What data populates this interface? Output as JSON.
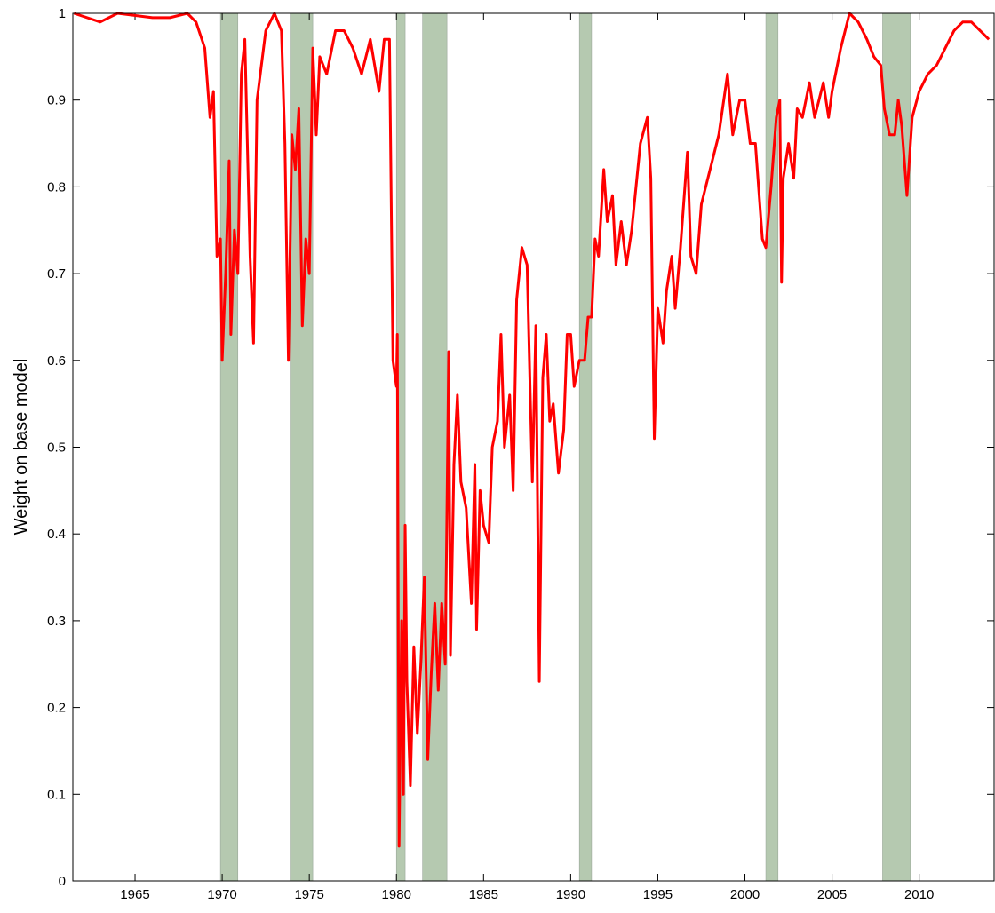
{
  "chart_data": {
    "type": "line",
    "y_label": "Weight on base model",
    "xlim": [
      1961.43,
      2014.3
    ],
    "ylim": [
      0,
      1
    ],
    "xticks": [
      1965,
      1970,
      1975,
      1980,
      1985,
      1990,
      1995,
      2000,
      2005,
      2010
    ],
    "yticks": [
      0,
      0.1,
      0.2,
      0.3,
      0.4,
      0.5,
      0.6,
      0.7,
      0.8,
      0.9,
      1
    ],
    "color": "#ff0000",
    "shade_color": "#b5c9b0",
    "shaded_regions": [
      {
        "start": 1969.9,
        "end": 1970.9
      },
      {
        "start": 1973.9,
        "end": 1975.2
      },
      {
        "start": 1980.0,
        "end": 1980.5
      },
      {
        "start": 1981.5,
        "end": 1982.9
      },
      {
        "start": 1990.5,
        "end": 1991.2
      },
      {
        "start": 2001.2,
        "end": 2001.9
      },
      {
        "start": 2007.9,
        "end": 2009.5
      }
    ],
    "x": [
      1961.5,
      1963,
      1964,
      1966,
      1967,
      1968,
      1968.5,
      1969,
      1969.3,
      1969.5,
      1969.7,
      1969.9,
      1970.0,
      1970.2,
      1970.4,
      1970.5,
      1970.7,
      1970.9,
      1971.1,
      1971.3,
      1971.6,
      1971.8,
      1972.0,
      1972.5,
      1973.0,
      1973.4,
      1973.6,
      1973.8,
      1974.0,
      1974.2,
      1974.4,
      1974.6,
      1974.8,
      1975.0,
      1975.2,
      1975.4,
      1975.6,
      1976.0,
      1976.5,
      1977,
      1977.5,
      1978,
      1978.5,
      1979,
      1979.3,
      1979.6,
      1979.8,
      1980.0,
      1980.05,
      1980.15,
      1980.3,
      1980.4,
      1980.5,
      1980.6,
      1980.8,
      1981.0,
      1981.2,
      1981.4,
      1981.6,
      1981.8,
      1982.0,
      1982.2,
      1982.4,
      1982.6,
      1982.8,
      1983.0,
      1983.1,
      1983.3,
      1983.5,
      1983.7,
      1984.0,
      1984.3,
      1984.5,
      1984.6,
      1984.8,
      1985.0,
      1985.3,
      1985.5,
      1985.8,
      1986.0,
      1986.2,
      1986.5,
      1986.7,
      1986.9,
      1987.2,
      1987.5,
      1987.8,
      1988.0,
      1988.2,
      1988.4,
      1988.6,
      1988.8,
      1989.0,
      1989.3,
      1989.6,
      1989.8,
      1990.0,
      1990.2,
      1990.5,
      1990.8,
      1991.0,
      1991.2,
      1991.4,
      1991.6,
      1991.9,
      1992.1,
      1992.4,
      1992.6,
      1992.9,
      1993.2,
      1993.5,
      1994.0,
      1994.4,
      1994.6,
      1994.8,
      1995.0,
      1995.3,
      1995.5,
      1995.8,
      1996.0,
      1996.3,
      1996.7,
      1996.9,
      1997.2,
      1997.5,
      1998.0,
      1998.5,
      1999.0,
      1999.3,
      1999.7,
      2000.0,
      2000.3,
      2000.6,
      2001.0,
      2001.2,
      2001.5,
      2001.8,
      2002.0,
      2002.1,
      2002.2,
      2002.5,
      2002.8,
      2003.0,
      2003.3,
      2003.7,
      2004.0,
      2004.5,
      2004.8,
      2005.0,
      2005.5,
      2006.0,
      2006.5,
      2007.0,
      2007.4,
      2007.8,
      2008.0,
      2008.3,
      2008.6,
      2008.8,
      2009.0,
      2009.3,
      2009.6,
      2010.0,
      2010.5,
      2011.0,
      2011.5,
      2012.0,
      2012.5,
      2013.0,
      2013.5,
      2014.0
    ],
    "values": [
      1.0,
      0.99,
      1.0,
      0.995,
      0.995,
      1.0,
      0.99,
      0.96,
      0.88,
      0.91,
      0.72,
      0.74,
      0.6,
      0.7,
      0.83,
      0.63,
      0.75,
      0.7,
      0.93,
      0.97,
      0.72,
      0.62,
      0.9,
      0.98,
      1.0,
      0.98,
      0.85,
      0.6,
      0.86,
      0.82,
      0.89,
      0.64,
      0.74,
      0.7,
      0.96,
      0.86,
      0.95,
      0.93,
      0.98,
      0.98,
      0.96,
      0.93,
      0.97,
      0.91,
      0.97,
      0.97,
      0.6,
      0.57,
      0.63,
      0.04,
      0.3,
      0.1,
      0.41,
      0.23,
      0.11,
      0.27,
      0.17,
      0.25,
      0.35,
      0.14,
      0.24,
      0.32,
      0.22,
      0.32,
      0.25,
      0.61,
      0.26,
      0.48,
      0.56,
      0.46,
      0.43,
      0.32,
      0.48,
      0.29,
      0.45,
      0.41,
      0.39,
      0.5,
      0.53,
      0.63,
      0.5,
      0.56,
      0.45,
      0.67,
      0.73,
      0.71,
      0.46,
      0.64,
      0.23,
      0.58,
      0.63,
      0.53,
      0.55,
      0.47,
      0.52,
      0.63,
      0.63,
      0.57,
      0.6,
      0.6,
      0.65,
      0.65,
      0.74,
      0.72,
      0.82,
      0.76,
      0.79,
      0.71,
      0.76,
      0.71,
      0.75,
      0.85,
      0.88,
      0.81,
      0.51,
      0.66,
      0.62,
      0.68,
      0.72,
      0.66,
      0.73,
      0.84,
      0.72,
      0.7,
      0.78,
      0.82,
      0.86,
      0.93,
      0.86,
      0.9,
      0.9,
      0.85,
      0.85,
      0.74,
      0.73,
      0.8,
      0.88,
      0.9,
      0.69,
      0.81,
      0.85,
      0.81,
      0.89,
      0.88,
      0.92,
      0.88,
      0.92,
      0.88,
      0.91,
      0.96,
      1.0,
      0.99,
      0.97,
      0.95,
      0.94,
      0.89,
      0.86,
      0.86,
      0.9,
      0.87,
      0.79,
      0.88,
      0.91,
      0.93,
      0.94,
      0.96,
      0.98,
      0.99,
      0.99,
      0.98,
      0.97
    ]
  }
}
